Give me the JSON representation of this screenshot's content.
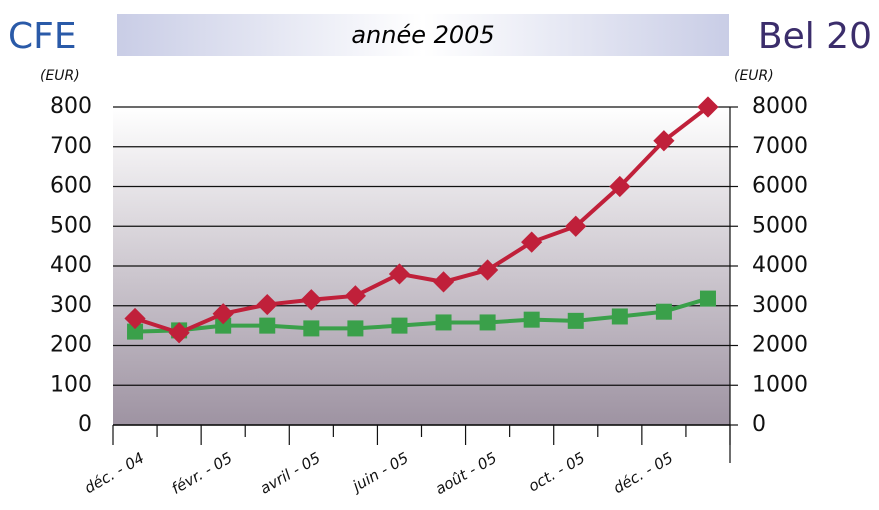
{
  "chart_data": {
    "type": "line",
    "title": "année 2005",
    "y_label": "(EUR)",
    "y2_label": "(EUR)",
    "categories": [
      "déc. - 04",
      null,
      "févr. - 05",
      null,
      "avril - 05",
      null,
      "juin - 05",
      null,
      "août - 05",
      null,
      "oct. - 05",
      null,
      "déc. - 05",
      null
    ],
    "series": [
      {
        "name": "CFE",
        "color": "#c0203a",
        "values": [
          268,
          232,
          280,
          303,
          315,
          325,
          380,
          360,
          390,
          460,
          500,
          600,
          715,
          800
        ]
      },
      {
        "name": "Bel 20",
        "color": "#3aa04a",
        "axis": "y2",
        "values": [
          2350,
          2380,
          2500,
          2500,
          2430,
          2430,
          2500,
          2580,
          2580,
          2650,
          2620,
          2730,
          2850,
          3180
        ]
      }
    ],
    "ylim": [
      0,
      800
    ],
    "yticks": [
      0,
      100,
      200,
      300,
      400,
      500,
      600,
      700,
      800
    ],
    "y2lim": [
      0,
      8000
    ],
    "y2ticks": [
      0,
      1000,
      2000,
      3000,
      4000,
      5000,
      6000,
      7000,
      8000
    ],
    "grid": true
  }
}
